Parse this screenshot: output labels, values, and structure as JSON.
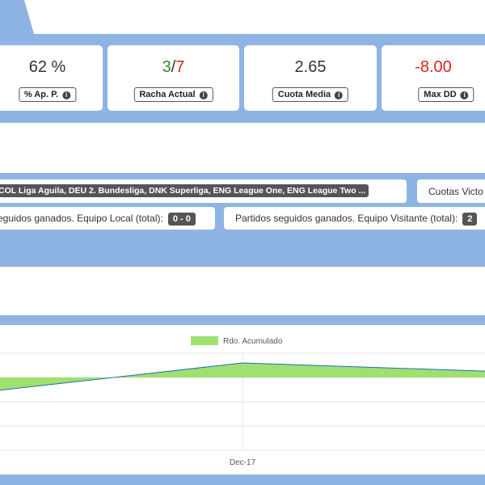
{
  "stats": [
    {
      "value_a": "62 %",
      "value_b": "",
      "label": "% Ap. P."
    },
    {
      "value_a": "3",
      "value_b": "7",
      "label": "Racha Actual"
    },
    {
      "value_a": "2.65",
      "value_b": "",
      "label": "Cuota Media"
    },
    {
      "value_a": "-8.00",
      "value_b": "",
      "label": "Max DD"
    }
  ],
  "filters": {
    "leagues": "COL Liga Aguila, DEU 2. Bundesliga, DNK Superliga, ENG League One, ENG League Two ...",
    "odds_label": "Cuotas Victo",
    "local_streak_label": "eguidos ganados. Equipo Local (total):",
    "local_streak_value": "0 - 0",
    "visitor_streak_label": "Partidos seguidos ganados. Equipo Visitante (total):",
    "visitor_streak_value": "2"
  },
  "colors": {
    "band": "#8db4e2",
    "series_fill": "#a0e070",
    "series_line": "#1f6fb5",
    "positive": "#2e8b2e",
    "negative": "#d22222"
  },
  "chart_data": {
    "type": "area",
    "legend": [
      "Rdo. Acumulado"
    ],
    "x_ticks": [
      "Dec-17"
    ],
    "series": [
      {
        "name": "Rdo. Acumulado",
        "points": [
          {
            "x": "start",
            "y": -0.6
          },
          {
            "x": "Dec-17",
            "y": 0.6
          },
          {
            "x": "end",
            "y": 0.25
          }
        ]
      }
    ],
    "baseline": 0,
    "ylim": [
      -3,
      1
    ],
    "grid": true,
    "legend_position": "top-center"
  }
}
